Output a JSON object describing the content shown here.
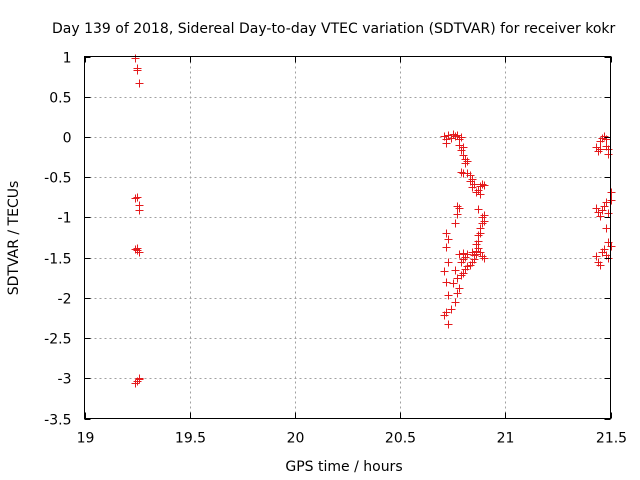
{
  "chart_data": {
    "type": "scatter",
    "title": "Day 139 of 2018, Sidereal Day-to-day VTEC variation (SDTVAR) for receiver kokr",
    "xlabel": "GPS time / hours",
    "ylabel": "SDTVAR / TECUs",
    "xlim": [
      19,
      21.5
    ],
    "ylim": [
      -3.5,
      1
    ],
    "xticks": [
      19,
      19.5,
      20,
      20.5,
      21,
      21.5
    ],
    "xtick_labels": [
      "19",
      "19.5",
      "20",
      "20.5",
      "21",
      "21.5"
    ],
    "yticks": [
      1,
      0.5,
      0,
      -0.5,
      -1,
      -1.5,
      -2,
      -2.5,
      -3,
      -3.5
    ],
    "ytick_labels": [
      "1",
      "0.5",
      "0",
      "-0.5",
      "-1",
      "-1.5",
      "-2",
      "-2.5",
      "-3",
      "-3.5"
    ],
    "grid": true,
    "marker": "+",
    "color": "#e41a1c",
    "points": [
      [
        19.24,
        0.98
      ],
      [
        19.25,
        0.86
      ],
      [
        19.25,
        0.83
      ],
      [
        19.26,
        0.67
      ],
      [
        19.24,
        -0.76
      ],
      [
        19.25,
        -0.75
      ],
      [
        19.26,
        -0.84
      ],
      [
        19.26,
        -0.91
      ],
      [
        19.24,
        -1.39
      ],
      [
        19.25,
        -1.38
      ],
      [
        19.25,
        -1.41
      ],
      [
        19.26,
        -1.43
      ],
      [
        19.24,
        -3.06
      ],
      [
        19.25,
        -3.03
      ],
      [
        19.26,
        -3.01
      ],
      [
        19.26,
        -3.0
      ],
      [
        20.71,
        0.01
      ],
      [
        20.72,
        -0.03
      ],
      [
        20.72,
        -0.07
      ],
      [
        20.73,
        0.02
      ],
      [
        20.74,
        -0.01
      ],
      [
        20.75,
        0.04
      ],
      [
        20.76,
        0.01
      ],
      [
        20.77,
        0.02
      ],
      [
        20.78,
        -0.02
      ],
      [
        20.79,
        0.0
      ],
      [
        20.78,
        -0.1
      ],
      [
        20.79,
        -0.16
      ],
      [
        20.8,
        -0.13
      ],
      [
        20.8,
        -0.22
      ],
      [
        20.81,
        -0.27
      ],
      [
        20.81,
        -0.33
      ],
      [
        20.82,
        -0.3
      ],
      [
        20.79,
        -0.43
      ],
      [
        20.8,
        -0.45
      ],
      [
        20.82,
        -0.45
      ],
      [
        20.83,
        -0.47
      ],
      [
        20.83,
        -0.55
      ],
      [
        20.84,
        -0.52
      ],
      [
        20.84,
        -0.62
      ],
      [
        20.85,
        -0.59
      ],
      [
        20.86,
        -0.68
      ],
      [
        20.87,
        -0.66
      ],
      [
        20.88,
        -0.61
      ],
      [
        20.89,
        -0.58
      ],
      [
        20.9,
        -0.6
      ],
      [
        20.88,
        -0.71
      ],
      [
        20.87,
        -0.9
      ],
      [
        20.77,
        -0.86
      ],
      [
        20.78,
        -0.88
      ],
      [
        20.77,
        -0.96
      ],
      [
        20.76,
        -1.07
      ],
      [
        20.89,
        -1.0
      ],
      [
        20.9,
        -0.97
      ],
      [
        20.9,
        -1.04
      ],
      [
        20.89,
        -1.07
      ],
      [
        20.88,
        -1.13
      ],
      [
        20.88,
        -1.19
      ],
      [
        20.87,
        -1.22
      ],
      [
        20.87,
        -1.29
      ],
      [
        20.86,
        -1.33
      ],
      [
        20.87,
        -1.38
      ],
      [
        20.86,
        -1.42
      ],
      [
        20.85,
        -1.47
      ],
      [
        20.85,
        -1.52
      ],
      [
        20.84,
        -1.55
      ],
      [
        20.83,
        -1.59
      ],
      [
        20.82,
        -1.61
      ],
      [
        20.81,
        -1.64
      ],
      [
        20.8,
        -1.69
      ],
      [
        20.79,
        -1.72
      ],
      [
        20.82,
        -1.46
      ],
      [
        20.81,
        -1.49
      ],
      [
        20.8,
        -1.52
      ],
      [
        20.8,
        -1.44
      ],
      [
        20.84,
        -1.43
      ],
      [
        20.86,
        -1.45
      ],
      [
        20.88,
        -1.43
      ],
      [
        20.89,
        -1.48
      ],
      [
        20.9,
        -1.51
      ],
      [
        20.72,
        -1.2
      ],
      [
        20.73,
        -1.27
      ],
      [
        20.72,
        -1.37
      ],
      [
        20.73,
        -1.55
      ],
      [
        20.71,
        -1.67
      ],
      [
        20.72,
        -1.8
      ],
      [
        20.73,
        -1.96
      ],
      [
        20.75,
        -1.82
      ],
      [
        20.76,
        -1.66
      ],
      [
        20.77,
        -1.75
      ],
      [
        20.78,
        -1.88
      ],
      [
        20.77,
        -1.94
      ],
      [
        20.76,
        -2.05
      ],
      [
        20.74,
        -2.14
      ],
      [
        20.72,
        -2.17
      ],
      [
        20.71,
        -2.21
      ],
      [
        20.73,
        -2.33
      ],
      [
        20.78,
        -1.46
      ],
      [
        20.79,
        -1.56
      ],
      [
        21.43,
        -0.13
      ],
      [
        21.44,
        -0.17
      ],
      [
        21.45,
        -0.15
      ],
      [
        21.45,
        -0.05
      ],
      [
        21.46,
        -0.01
      ],
      [
        21.47,
        0.01
      ],
      [
        21.48,
        -0.02
      ],
      [
        21.48,
        -0.11
      ],
      [
        21.49,
        -0.15
      ],
      [
        21.49,
        -0.21
      ],
      [
        21.43,
        -0.88
      ],
      [
        21.44,
        -0.93
      ],
      [
        21.45,
        -0.98
      ],
      [
        21.46,
        -0.91
      ],
      [
        21.47,
        -0.86
      ],
      [
        21.48,
        -0.81
      ],
      [
        21.49,
        -0.94
      ],
      [
        21.5,
        -0.79
      ],
      [
        21.5,
        -0.69
      ],
      [
        21.48,
        -1.13
      ],
      [
        21.49,
        -1.31
      ],
      [
        21.5,
        -1.36
      ],
      [
        21.43,
        -1.48
      ],
      [
        21.44,
        -1.56
      ],
      [
        21.45,
        -1.59
      ],
      [
        21.46,
        -1.43
      ],
      [
        21.47,
        -1.39
      ],
      [
        21.48,
        -1.47
      ],
      [
        21.49,
        -1.51
      ]
    ]
  }
}
